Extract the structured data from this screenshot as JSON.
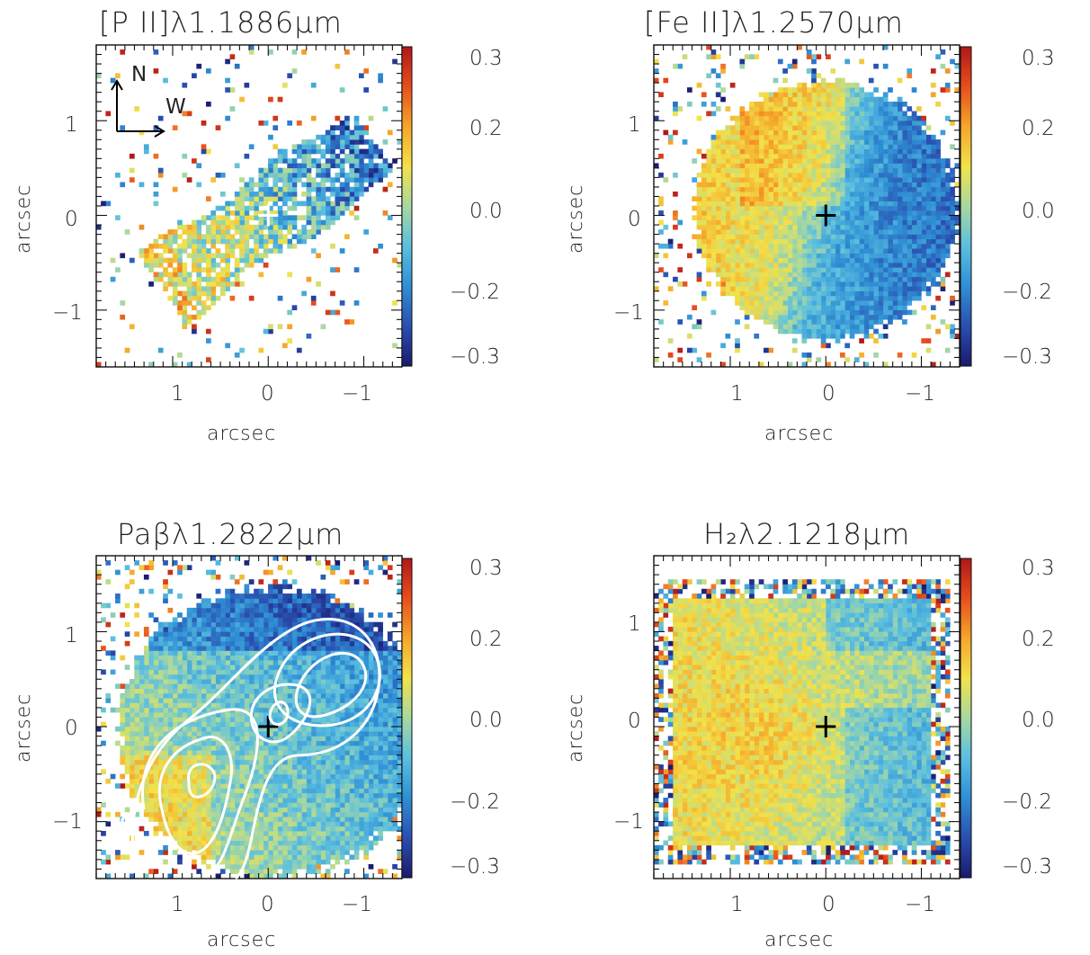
{
  "chart_data": [
    {
      "type": "heatmap",
      "title": "[P II]λ1.1886μm",
      "xlabel": "arcsec",
      "ylabel": "arcsec",
      "xlim": [
        1.8,
        -1.4
      ],
      "ylim": [
        -1.6,
        1.8
      ],
      "x_ticks": [
        "1",
        "0",
        "−1"
      ],
      "y_ticks": [
        "−1",
        "0",
        "1"
      ],
      "colorbar": {
        "range": [
          -0.35,
          0.35
        ],
        "ticks": [
          "0.3",
          "0.2",
          "0.0",
          "−0.2",
          "−0.3"
        ]
      },
      "colormap": [
        "#1a1a6e",
        "#2a4fb0",
        "#2f8fd4",
        "#5bbfe0",
        "#a8d8a0",
        "#f2e24a",
        "#f5a62a",
        "#e84e1e",
        "#b01818"
      ],
      "compass": {
        "north": "N",
        "west": "W"
      },
      "center_marker": {
        "x": 0,
        "y": 0,
        "color": "#ffffff"
      },
      "pattern": "diagonal-band"
    },
    {
      "type": "heatmap",
      "title": "[Fe II]λ1.2570μm",
      "xlabel": "arcsec",
      "ylabel": "arcsec",
      "xlim": [
        1.8,
        -1.4
      ],
      "ylim": [
        -1.6,
        1.8
      ],
      "x_ticks": [
        "1",
        "0",
        "−1"
      ],
      "y_ticks": [
        "−1",
        "0",
        "1"
      ],
      "colorbar": {
        "range": [
          -0.35,
          0.35
        ],
        "ticks": [
          "0.3",
          "0.2",
          "0.0",
          "−0.2",
          "−0.3"
        ]
      },
      "center_marker": {
        "x": 0,
        "y": 0,
        "color": "#000000"
      },
      "pattern": "disk-east-positive"
    },
    {
      "type": "heatmap",
      "title": "Paβλ1.2822μm",
      "xlabel": "arcsec",
      "ylabel": "arcsec",
      "xlim": [
        1.8,
        -1.4
      ],
      "ylim": [
        -1.6,
        1.8
      ],
      "x_ticks": [
        "1",
        "0",
        "−1"
      ],
      "y_ticks": [
        "−1",
        "0",
        "1"
      ],
      "colorbar": {
        "range": [
          -0.35,
          0.35
        ],
        "ticks": [
          "0.3",
          "0.2",
          "0.0",
          "−0.2",
          "−0.3"
        ]
      },
      "center_marker": {
        "x": 0,
        "y": 0,
        "color": "#000000"
      },
      "overlay_contours": "white",
      "pattern": "disk-mixed"
    },
    {
      "type": "heatmap",
      "title": "H₂λ2.1218μm",
      "xlabel": "arcsec",
      "ylabel": "arcsec",
      "xlim": [
        1.8,
        -1.4
      ],
      "ylim": [
        -1.6,
        1.8
      ],
      "x_ticks": [
        "1",
        "0",
        "−1"
      ],
      "y_ticks": [
        "−1",
        "0",
        "1"
      ],
      "colorbar": {
        "range": [
          -0.35,
          0.35
        ],
        "ticks": [
          "0.3",
          "0.2",
          "0.0",
          "−0.2",
          "−0.3"
        ]
      },
      "center_marker": {
        "x": 0,
        "y": 0,
        "color": "#000000"
      },
      "pattern": "square-positive"
    }
  ]
}
